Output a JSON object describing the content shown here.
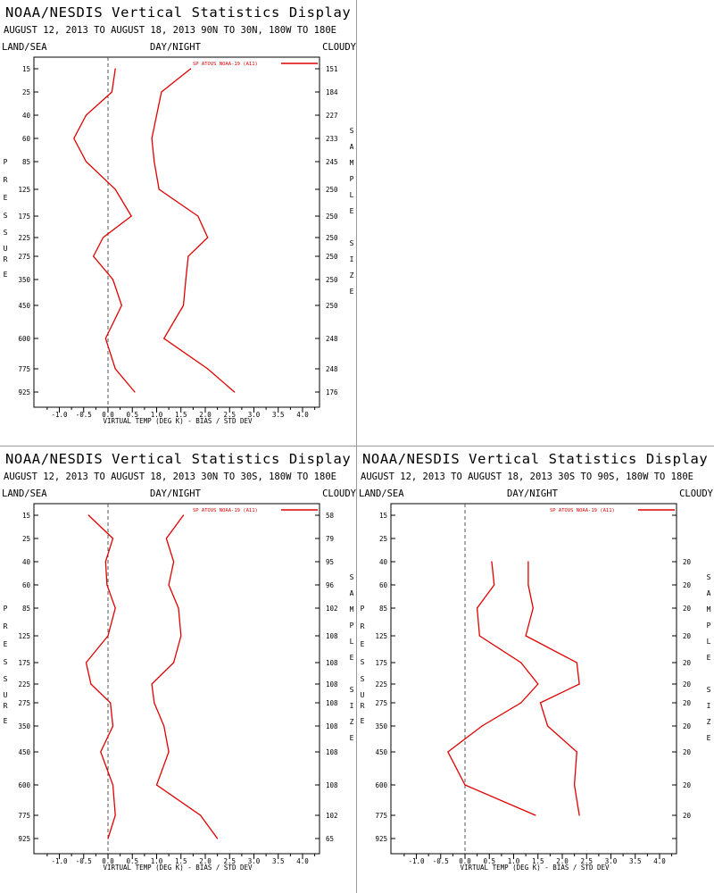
{
  "colors": {
    "series": "#e00000",
    "frame": "#000000",
    "zero_line": "#555555",
    "divider": "#9a9a9a"
  },
  "common": {
    "left_vertical_label": "PRESSURE",
    "right_vertical_label_1": "SAMPLE",
    "right_vertical_label_2": "SIZE",
    "legend": "SP ATOVS NOAA-19 (A11)",
    "xlabel": "VIRTUAL TEMP (DEG K) - BIAS / STD DEV",
    "xticks": [
      "-1.0",
      "-0.5",
      "0.0",
      "0.5",
      "1.0",
      "1.5",
      "2.0",
      "2.5",
      "3.0",
      "3.5",
      "4.0"
    ],
    "pressure_levels": [
      "15",
      "25",
      "40",
      "60",
      "85",
      "125",
      "175",
      "225",
      "275",
      "350",
      "450",
      "600",
      "775",
      "925"
    ]
  },
  "panels": [
    {
      "title": "NOAA/NESDIS Vertical Statistics Display",
      "subtitle": "AUGUST 12, 2013 TO AUGUST 18, 2013  90N TO 30N, 180W TO 180E",
      "land_sea": "LAND/SEA",
      "day_night": "DAY/NIGHT",
      "cloudy": "CLOUDY",
      "sample_sizes": [
        "151",
        "184",
        "227",
        "233",
        "245",
        "250",
        "250",
        "250",
        "250",
        "250",
        "250",
        "248",
        "248",
        "176"
      ]
    },
    {
      "title": "NOAA/NESDIS Vertical Statistics Display",
      "subtitle": "AUGUST 12, 2013 TO AUGUST 18, 2013  30N TO 30S, 180W TO 180E",
      "land_sea": "LAND/SEA",
      "day_night": "DAY/NIGHT",
      "cloudy": "CLOUDY",
      "sample_sizes": [
        "58",
        "79",
        "95",
        "96",
        "102",
        "108",
        "108",
        "108",
        "108",
        "108",
        "108",
        "108",
        "102",
        "65"
      ]
    },
    {
      "title": "NOAA/NESDIS Vertical Statistics Display",
      "subtitle": "AUGUST 12, 2013 TO AUGUST 18, 2013  30S TO 90S, 180W TO 180E",
      "land_sea": "LAND/SEA",
      "day_night": "DAY/NIGHT",
      "cloudy": "CLOUDY",
      "sample_sizes": [
        "",
        "",
        "20",
        "20",
        "20",
        "20",
        "20",
        "20",
        "20",
        "20",
        "20",
        "20",
        "20",
        ""
      ]
    }
  ],
  "chart_data": [
    {
      "type": "line",
      "title": "NOAA/NESDIS Vertical Statistics Display",
      "subtitle": "AUGUST 12, 2013 TO AUGUST 18, 2013  90N TO 30N, 180W TO 180E",
      "xlabel": "VIRTUAL TEMP (DEG K) - BIAS / STD DEV",
      "ylabel": "PRESSURE",
      "xlim": [
        -1.5,
        4.5
      ],
      "y": [
        15,
        25,
        40,
        60,
        85,
        125,
        175,
        225,
        275,
        350,
        450,
        600,
        775,
        925
      ],
      "series": [
        {
          "values": [
            0.15,
            0.08,
            -0.45,
            -0.7,
            -0.45,
            0.15,
            0.48,
            -0.1,
            -0.3,
            0.1,
            0.28,
            -0.05,
            0.15,
            0.55
          ]
        },
        {
          "values": [
            1.7,
            1.1,
            1.0,
            0.9,
            0.95,
            1.05,
            1.85,
            2.05,
            1.65,
            1.6,
            1.55,
            1.15,
            2.05,
            2.6
          ]
        }
      ]
    },
    {
      "type": "line",
      "title": "NOAA/NESDIS Vertical Statistics Display",
      "subtitle": "AUGUST 12, 2013 TO AUGUST 18, 2013  30N TO 30S, 180W TO 180E",
      "xlabel": "VIRTUAL TEMP (DEG K) - BIAS / STD DEV",
      "ylabel": "PRESSURE",
      "xlim": [
        -1.5,
        4.5
      ],
      "y": [
        15,
        25,
        40,
        60,
        85,
        125,
        175,
        225,
        275,
        350,
        450,
        600,
        775,
        925
      ],
      "series": [
        {
          "values": [
            -0.4,
            0.1,
            -0.05,
            -0.02,
            0.15,
            0.0,
            -0.45,
            -0.35,
            0.05,
            0.1,
            -0.15,
            0.1,
            0.15,
            0.0
          ]
        },
        {
          "values": [
            1.55,
            1.2,
            1.35,
            1.25,
            1.45,
            1.5,
            1.35,
            0.9,
            0.95,
            1.15,
            1.25,
            1.0,
            1.9,
            2.25
          ]
        }
      ]
    },
    {
      "type": "line",
      "title": "NOAA/NESDIS Vertical Statistics Display",
      "subtitle": "AUGUST 12, 2013 TO AUGUST 18, 2013  30S TO 90S, 180W TO 180E",
      "xlabel": "VIRTUAL TEMP (DEG K) - BIAS / STD DEV",
      "ylabel": "PRESSURE",
      "xlim": [
        -1.5,
        4.5
      ],
      "y": [
        40,
        60,
        85,
        125,
        175,
        225,
        275,
        350,
        450,
        600,
        775
      ],
      "series": [
        {
          "values": [
            0.55,
            0.6,
            0.25,
            0.3,
            1.15,
            1.5,
            1.15,
            0.35,
            -0.35,
            0.0,
            1.45
          ]
        },
        {
          "values": [
            1.3,
            1.3,
            1.4,
            1.25,
            2.3,
            2.35,
            1.55,
            1.7,
            2.3,
            2.25,
            2.35
          ]
        }
      ]
    }
  ]
}
